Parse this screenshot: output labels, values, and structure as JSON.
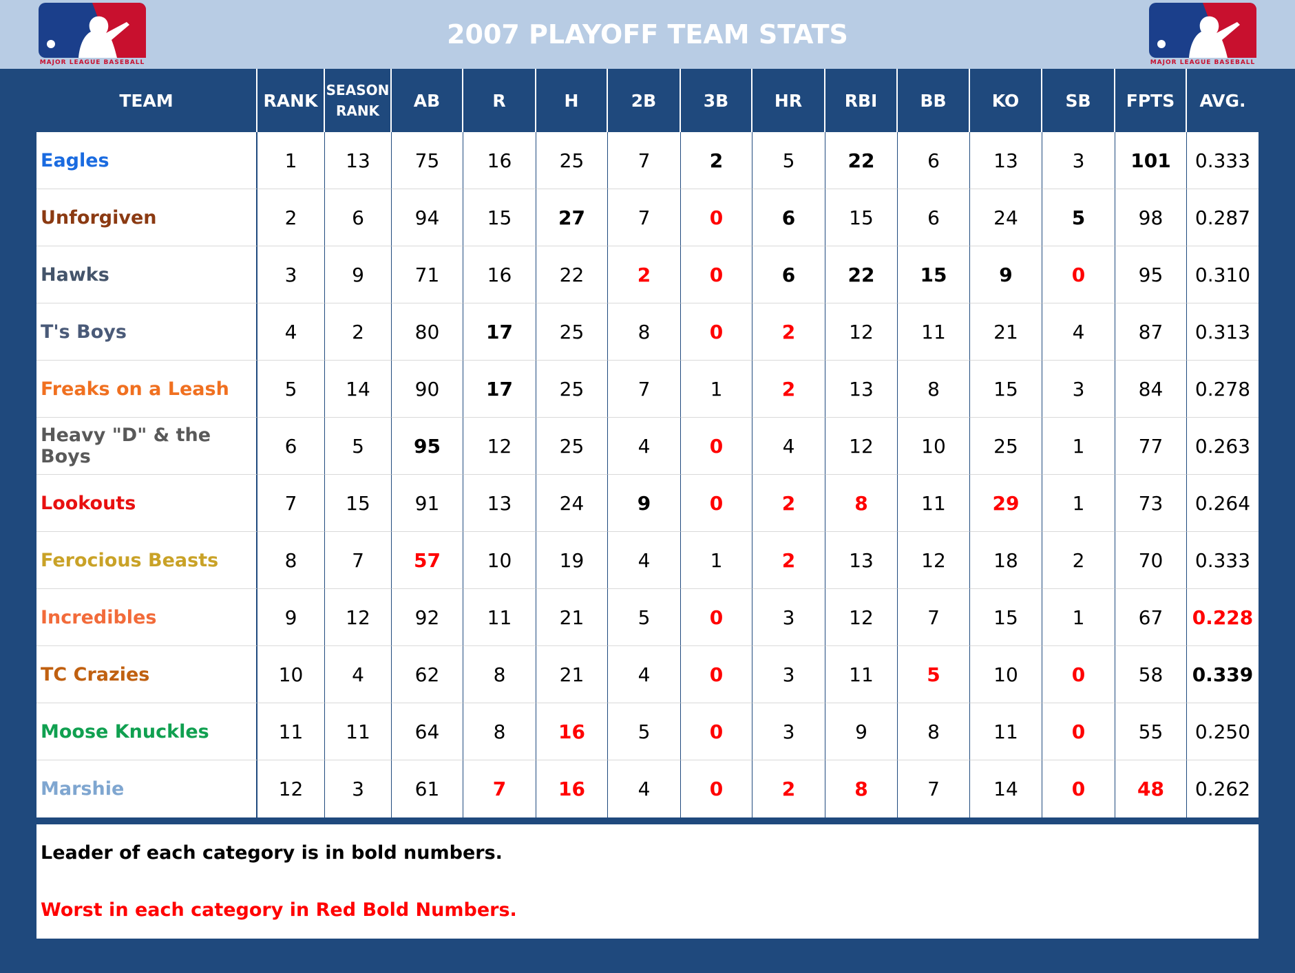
{
  "header": {
    "title": "2007 PLAYOFF TEAM STATS",
    "logo_text": "MAJOR LEAGUE BASEBALL"
  },
  "table": {
    "columns": [
      "TEAM",
      "RANK",
      "SEASON RANK",
      "AB",
      "R",
      "H",
      "2B",
      "3B",
      "HR",
      "RBI",
      "BB",
      "KO",
      "SB",
      "FPTS",
      "AVG."
    ],
    "rows": [
      {
        "team": "Eagles",
        "color": "#1a6be0",
        "cells": [
          "1",
          "13",
          "75",
          "16",
          "25",
          "7",
          "2",
          "5",
          "22",
          "6",
          "13",
          "3",
          "101",
          "0.333"
        ],
        "bold": [
          6,
          8,
          12
        ],
        "red": []
      },
      {
        "team": "Unforgiven",
        "color": "#8b3a12",
        "cells": [
          "2",
          "6",
          "94",
          "15",
          "27",
          "7",
          "0",
          "6",
          "15",
          "6",
          "24",
          "5",
          "98",
          "0.287"
        ],
        "bold": [
          4,
          7,
          11
        ],
        "red": [
          6
        ]
      },
      {
        "team": "Hawks",
        "color": "#44546a",
        "cells": [
          "3",
          "9",
          "71",
          "16",
          "22",
          "2",
          "0",
          "6",
          "22",
          "15",
          "9",
          "0",
          "95",
          "0.310"
        ],
        "bold": [
          7,
          8,
          9,
          10
        ],
        "red": [
          5,
          6,
          11
        ]
      },
      {
        "team": "T's Boys",
        "color": "#4a5a78",
        "cells": [
          "4",
          "2",
          "80",
          "17",
          "25",
          "8",
          "0",
          "2",
          "12",
          "11",
          "21",
          "4",
          "87",
          "0.313"
        ],
        "bold": [
          3
        ],
        "red": [
          6,
          7
        ]
      },
      {
        "team": "Freaks on a Leash",
        "color": "#f07020",
        "cells": [
          "5",
          "14",
          "90",
          "17",
          "25",
          "7",
          "1",
          "2",
          "13",
          "8",
          "15",
          "3",
          "84",
          "0.278"
        ],
        "bold": [
          3
        ],
        "red": [
          7
        ]
      },
      {
        "team": "Heavy \"D\" & the Boys",
        "color": "#595959",
        "cells": [
          "6",
          "5",
          "95",
          "12",
          "25",
          "4",
          "0",
          "4",
          "12",
          "10",
          "25",
          "1",
          "77",
          "0.263"
        ],
        "bold": [
          2
        ],
        "red": [
          6
        ]
      },
      {
        "team": "Lookouts",
        "color": "#e81010",
        "cells": [
          "7",
          "15",
          "91",
          "13",
          "24",
          "9",
          "0",
          "2",
          "8",
          "11",
          "29",
          "1",
          "73",
          "0.264"
        ],
        "bold": [
          5
        ],
        "red": [
          6,
          7,
          8,
          10
        ]
      },
      {
        "team": "Ferocious Beasts",
        "color": "#c9a227",
        "cells": [
          "8",
          "7",
          "57",
          "10",
          "19",
          "4",
          "1",
          "2",
          "13",
          "12",
          "18",
          "2",
          "70",
          "0.333"
        ],
        "bold": [],
        "red": [
          2,
          7
        ]
      },
      {
        "team": "Incredibles",
        "color": "#f26b3a",
        "cells": [
          "9",
          "12",
          "92",
          "11",
          "21",
          "5",
          "0",
          "3",
          "12",
          "7",
          "15",
          "1",
          "67",
          "0.228"
        ],
        "bold": [],
        "red": [
          6,
          13
        ]
      },
      {
        "team": "TC Crazies",
        "color": "#c06010",
        "cells": [
          "10",
          "4",
          "62",
          "8",
          "21",
          "4",
          "0",
          "3",
          "11",
          "5",
          "10",
          "0",
          "58",
          "0.339"
        ],
        "bold": [
          13
        ],
        "red": [
          6,
          9,
          11
        ]
      },
      {
        "team": "Moose Knuckles",
        "color": "#10a050",
        "cells": [
          "11",
          "11",
          "64",
          "8",
          "16",
          "5",
          "0",
          "3",
          "9",
          "8",
          "11",
          "0",
          "55",
          "0.250"
        ],
        "bold": [],
        "red": [
          4,
          6,
          11
        ]
      },
      {
        "team": "Marshie",
        "color": "#7fa6d0",
        "cells": [
          "12",
          "3",
          "61",
          "7",
          "16",
          "4",
          "0",
          "2",
          "8",
          "7",
          "14",
          "0",
          "48",
          "0.262"
        ],
        "bold": [],
        "red": [
          3,
          4,
          6,
          7,
          8,
          11,
          12
        ]
      }
    ]
  },
  "notes": [
    "Leader of each category is in bold numbers.",
    "Worst in each category in Red Bold Numbers."
  ]
}
